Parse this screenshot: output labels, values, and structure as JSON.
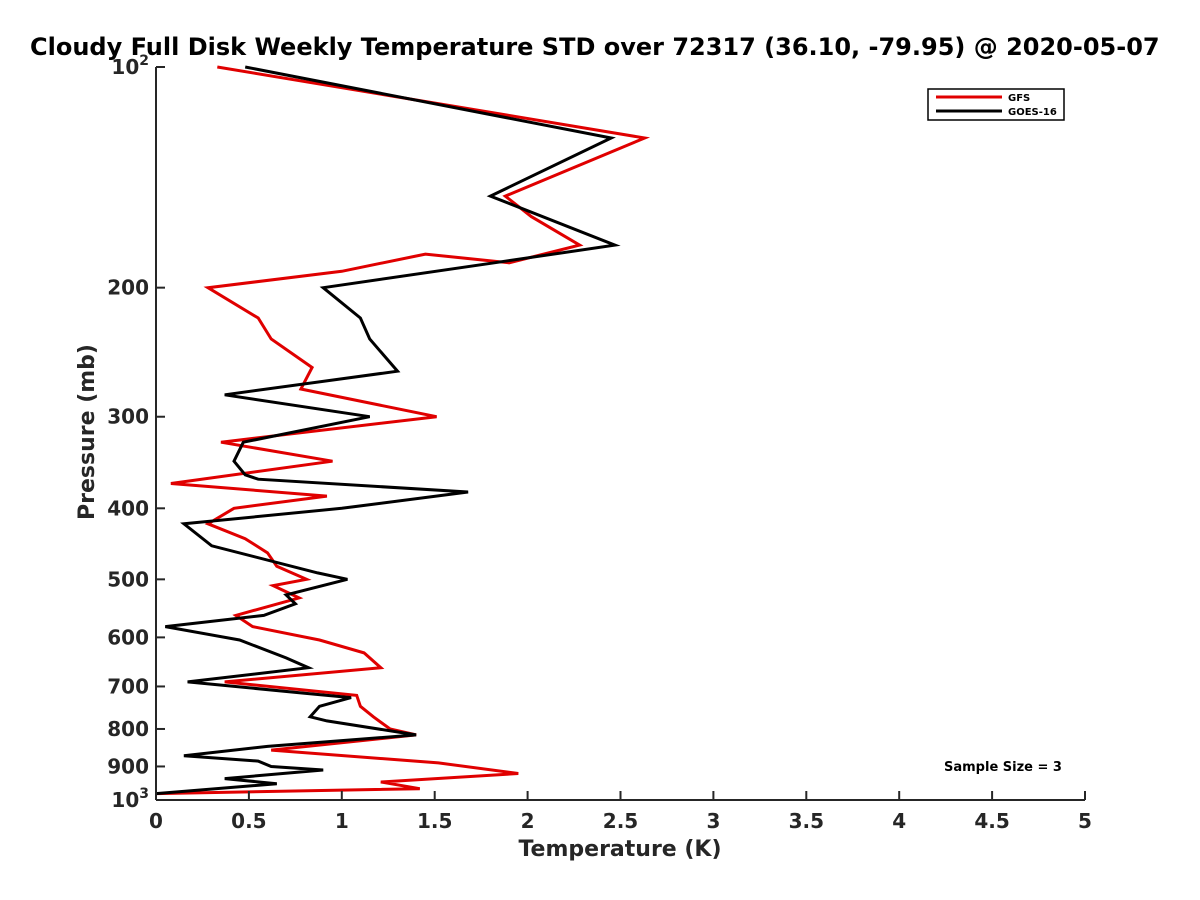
{
  "chart_data": {
    "type": "line",
    "title": "Cloudy Full Disk Weekly Temperature STD over 72317 (36.10, -79.95) @ 2020-05-07",
    "xlabel": "Temperature (K)",
    "ylabel": "Pressure (mb)",
    "xlim": [
      0,
      5
    ],
    "ylim": [
      100,
      1000
    ],
    "y_scale": "log",
    "y_reversed": true,
    "grid": false,
    "legend_position": "top-right",
    "xticks": [
      {
        "value": 0,
        "label": "0"
      },
      {
        "value": 0.5,
        "label": "0.5"
      },
      {
        "value": 1,
        "label": "1"
      },
      {
        "value": 1.5,
        "label": "1.5"
      },
      {
        "value": 2,
        "label": "2"
      },
      {
        "value": 2.5,
        "label": "2.5"
      },
      {
        "value": 3,
        "label": "3"
      },
      {
        "value": 3.5,
        "label": "3.5"
      },
      {
        "value": 4,
        "label": "4"
      },
      {
        "value": 4.5,
        "label": "4.5"
      },
      {
        "value": 5,
        "label": "5"
      }
    ],
    "yticks": [
      {
        "value": 100,
        "base": "10",
        "sup": "2"
      },
      {
        "value": 200,
        "label": "200"
      },
      {
        "value": 300,
        "label": "300"
      },
      {
        "value": 400,
        "label": "400"
      },
      {
        "value": 500,
        "label": "500"
      },
      {
        "value": 600,
        "label": "600"
      },
      {
        "value": 700,
        "label": "700"
      },
      {
        "value": 800,
        "label": "800"
      },
      {
        "value": 900,
        "label": "900"
      },
      {
        "value": 1000,
        "base": "10",
        "sup": "3"
      }
    ],
    "annotation": "Sample Size = 3",
    "series": [
      {
        "name": "GFS",
        "color": "#e00000",
        "points": [
          [
            0.33,
            100
          ],
          [
            2.63,
            125
          ],
          [
            1.88,
            150
          ],
          [
            2.02,
            160
          ],
          [
            2.28,
            175
          ],
          [
            1.9,
            185
          ],
          [
            1.45,
            180
          ],
          [
            1.0,
            190
          ],
          [
            0.28,
            200
          ],
          [
            0.55,
            220
          ],
          [
            0.62,
            235
          ],
          [
            0.84,
            257
          ],
          [
            0.78,
            275
          ],
          [
            1.51,
            300
          ],
          [
            0.35,
            325
          ],
          [
            0.95,
            345
          ],
          [
            0.08,
            370
          ],
          [
            0.92,
            385
          ],
          [
            0.42,
            400
          ],
          [
            0.28,
            420
          ],
          [
            0.48,
            440
          ],
          [
            0.6,
            460
          ],
          [
            0.65,
            480
          ],
          [
            0.81,
            500
          ],
          [
            0.63,
            510
          ],
          [
            0.77,
            530
          ],
          [
            0.43,
            560
          ],
          [
            0.52,
            580
          ],
          [
            0.88,
            605
          ],
          [
            1.12,
            630
          ],
          [
            1.21,
            660
          ],
          [
            0.37,
            690
          ],
          [
            1.08,
            720
          ],
          [
            1.1,
            745
          ],
          [
            1.17,
            770
          ],
          [
            1.26,
            800
          ],
          [
            1.4,
            815
          ],
          [
            0.62,
            855
          ],
          [
            1.52,
            890
          ],
          [
            1.95,
            920
          ],
          [
            1.21,
            945
          ],
          [
            1.42,
            965
          ],
          [
            0.0,
            980
          ]
        ]
      },
      {
        "name": "GOES-16",
        "color": "#000000",
        "points": [
          [
            0.48,
            100
          ],
          [
            2.45,
            125
          ],
          [
            1.8,
            150
          ],
          [
            2.47,
            175
          ],
          [
            1.82,
            185
          ],
          [
            0.9,
            200
          ],
          [
            1.1,
            220
          ],
          [
            1.15,
            235
          ],
          [
            1.3,
            260
          ],
          [
            0.37,
            280
          ],
          [
            1.15,
            300
          ],
          [
            0.47,
            325
          ],
          [
            0.42,
            345
          ],
          [
            0.48,
            360
          ],
          [
            0.55,
            365
          ],
          [
            1.68,
            380
          ],
          [
            1.0,
            400
          ],
          [
            0.15,
            420
          ],
          [
            0.3,
            450
          ],
          [
            0.87,
            490
          ],
          [
            1.03,
            500
          ],
          [
            0.7,
            525
          ],
          [
            0.75,
            540
          ],
          [
            0.58,
            560
          ],
          [
            0.05,
            580
          ],
          [
            0.45,
            605
          ],
          [
            0.7,
            640
          ],
          [
            0.82,
            660
          ],
          [
            0.17,
            690
          ],
          [
            0.8,
            715
          ],
          [
            1.05,
            725
          ],
          [
            0.88,
            745
          ],
          [
            0.83,
            770
          ],
          [
            0.92,
            780
          ],
          [
            1.4,
            815
          ],
          [
            0.6,
            845
          ],
          [
            0.15,
            870
          ],
          [
            0.55,
            885
          ],
          [
            0.62,
            900
          ],
          [
            0.9,
            910
          ],
          [
            0.37,
            935
          ],
          [
            0.65,
            950
          ],
          [
            0.0,
            980
          ]
        ]
      }
    ]
  }
}
